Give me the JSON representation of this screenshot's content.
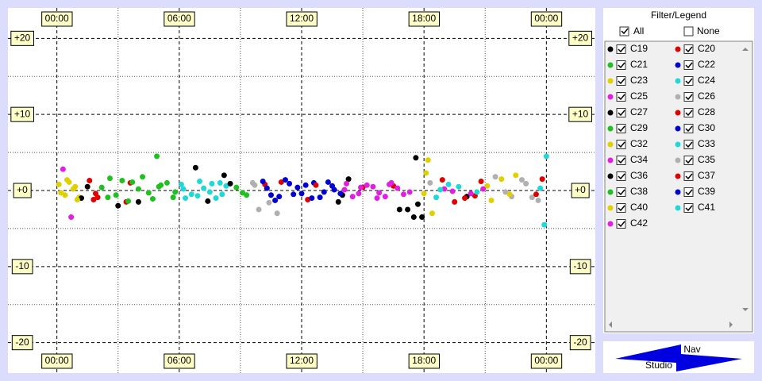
{
  "chart_data": {
    "type": "scatter",
    "xlim": [
      -2.4,
      26.4
    ],
    "xticks": [
      {
        "value": 0,
        "label": "00:00"
      },
      {
        "value": 6,
        "label": "06:00"
      },
      {
        "value": 12,
        "label": "12:00"
      },
      {
        "value": 18,
        "label": "18:00"
      },
      {
        "value": 24,
        "label": "00:00"
      }
    ],
    "xminor": [
      3,
      9,
      15,
      21
    ],
    "ylim": [
      -24,
      24
    ],
    "yticks": [
      {
        "value": 20,
        "label": "+20"
      },
      {
        "value": 10,
        "label": "+10"
      },
      {
        "value": 0,
        "label": "+0"
      },
      -10,
      -20
    ],
    "yminor": [
      15,
      5,
      -5,
      -15
    ],
    "grid": true,
    "series": [
      {
        "name": "C19",
        "color": "#000000",
        "x": [
          1.5,
          4.0,
          8.2,
          14.3,
          16.8,
          17.6,
          17.9
        ],
        "values": [
          0.5,
          -1.5,
          2.0,
          1.5,
          -2.5,
          4.3,
          -3.5
        ]
      },
      {
        "name": "C20",
        "color": "#e00000",
        "x": [
          1.8,
          3.6,
          10.2,
          16.5,
          19.5,
          20.8,
          23.8
        ],
        "values": [
          -1.2,
          1.0,
          0.8,
          0.6,
          -1.5,
          1.2,
          1.5
        ]
      },
      {
        "name": "C21",
        "color": "#20c020",
        "x": [
          2.2,
          2.9,
          3.7,
          4.5,
          5.1,
          5.8,
          4.9
        ],
        "values": [
          0.4,
          -0.6,
          1.1,
          -0.3,
          0.7,
          -0.2,
          4.5
        ]
      },
      {
        "name": "C22",
        "color": "#0000d0",
        "x": [
          10.3,
          10.9,
          11.4,
          12.0,
          12.6,
          13.1,
          13.5
        ],
        "values": [
          0.3,
          -0.8,
          0.9,
          -0.4,
          1.0,
          -0.2,
          0.6
        ]
      },
      {
        "name": "C23",
        "color": "#e0d000",
        "x": [
          0.1,
          0.4,
          0.8,
          1.1,
          18.2,
          18.4,
          22.5
        ],
        "values": [
          0.8,
          -0.6,
          0.2,
          -0.9,
          4.0,
          -3.0,
          2.0
        ]
      },
      {
        "name": "C24",
        "color": "#20d8d8",
        "x": [
          6.1,
          6.6,
          7.2,
          7.8,
          8.3,
          19.2,
          24.0
        ],
        "values": [
          0.8,
          -0.5,
          0.3,
          -1.0,
          0.6,
          0.8,
          4.5
        ]
      },
      {
        "name": "C25",
        "color": "#e020e0",
        "x": [
          0.7,
          14.2,
          14.8,
          15.5,
          16.1,
          16.7,
          17.3
        ],
        "values": [
          -3.5,
          0.9,
          -0.4,
          0.5,
          -0.8,
          0.3,
          -0.2
        ]
      },
      {
        "name": "C26",
        "color": "#b0b0b0",
        "x": [
          9.6,
          9.9,
          10.8,
          21.5,
          22.3,
          23.0,
          23.6
        ],
        "values": [
          1.0,
          -2.5,
          -3.0,
          1.8,
          -0.8,
          0.9,
          -1.3
        ]
      },
      {
        "name": "C27",
        "color": "#000000",
        "x": [
          3.0,
          6.8,
          13.8,
          17.2,
          17.5,
          20.1
        ],
        "values": [
          -2.0,
          3.0,
          -1.5,
          -2.5,
          -3.5,
          -0.8
        ]
      },
      {
        "name": "C28",
        "color": "#e00000",
        "x": [
          1.6,
          2.0,
          11.0,
          12.3,
          15.0,
          20.5
        ],
        "values": [
          1.3,
          -0.9,
          1.1,
          -1.2,
          0.4,
          -0.7
        ]
      },
      {
        "name": "C29",
        "color": "#20c020",
        "x": [
          2.5,
          3.2,
          4.0,
          4.7,
          5.4,
          8.8,
          9.1
        ],
        "values": [
          -0.9,
          1.3,
          0.2,
          -1.1,
          1.0,
          0.4,
          -0.3
        ]
      },
      {
        "name": "C30",
        "color": "#0000d0",
        "x": [
          10.1,
          10.7,
          11.6,
          12.2,
          12.9,
          13.6
        ],
        "values": [
          1.2,
          -1.3,
          -0.5,
          0.7,
          -0.9,
          0.1
        ]
      },
      {
        "name": "C32",
        "color": "#e0d000",
        "x": [
          0.2,
          0.6,
          0.9,
          18.0,
          21.3,
          21.8
        ],
        "values": [
          -0.3,
          1.1,
          0.5,
          -0.4,
          -1.3,
          1.5
        ]
      },
      {
        "name": "C33",
        "color": "#20d8d8",
        "x": [
          6.3,
          7.0,
          7.5,
          8.0,
          18.6,
          19.7,
          23.9
        ],
        "values": [
          -1.0,
          1.2,
          -0.2,
          1.0,
          -0.9,
          0.5,
          -4.5
        ]
      },
      {
        "name": "C34",
        "color": "#e020e0",
        "x": [
          0.3,
          14.5,
          15.2,
          15.8,
          16.4,
          19.0,
          20.3
        ],
        "values": [
          2.8,
          -0.8,
          0.7,
          -0.3,
          1.0,
          0.2,
          -0.4
        ]
      },
      {
        "name": "C35",
        "color": "#b0b0b0",
        "x": [
          9.7,
          10.4,
          18.3,
          22.0,
          22.8,
          23.3
        ],
        "values": [
          0.7,
          -1.6,
          1.0,
          -0.2,
          1.4,
          -0.9
        ]
      },
      {
        "name": "C36",
        "color": "#000000",
        "x": [
          1.2,
          7.4,
          8.5,
          14.0,
          17.7
        ],
        "values": [
          -1.0,
          -1.4,
          0.9,
          -0.6,
          -1.8
        ]
      },
      {
        "name": "C37",
        "color": "#e00000",
        "x": [
          1.9,
          3.4,
          12.7,
          18.9,
          20.0,
          23.5
        ],
        "values": [
          -0.4,
          -1.5,
          0.7,
          1.4,
          -1.0,
          -0.5
        ]
      },
      {
        "name": "C38",
        "color": "#20c020",
        "x": [
          2.6,
          3.5,
          4.2,
          5.0,
          5.7,
          9.3
        ],
        "values": [
          1.6,
          -1.4,
          1.8,
          0.5,
          -0.9,
          -0.6
        ]
      },
      {
        "name": "C39",
        "color": "#0000d0",
        "x": [
          10.5,
          11.2,
          11.8,
          12.5,
          13.3,
          13.9
        ],
        "values": [
          -0.6,
          1.4,
          0.4,
          -1.0,
          1.1,
          -0.4
        ]
      },
      {
        "name": "C40",
        "color": "#e0d000",
        "x": [
          0.5,
          1.0,
          18.1,
          21.1,
          22.2
        ],
        "values": [
          1.4,
          -1.2,
          2.3,
          0.6,
          -0.5
        ]
      },
      {
        "name": "C41",
        "color": "#20d8d8",
        "x": [
          6.2,
          6.9,
          7.6,
          8.1,
          18.8,
          20.6,
          23.7
        ],
        "values": [
          0.2,
          -0.7,
          0.9,
          -0.5,
          0.1,
          -0.2,
          0.3
        ]
      },
      {
        "name": "C42",
        "color": "#e020e0",
        "x": [
          14.1,
          14.9,
          15.7,
          16.3,
          17.0,
          19.4,
          20.9
        ],
        "values": [
          0.1,
          0.4,
          -1.0,
          0.8,
          -0.5,
          -0.1,
          0.2
        ]
      }
    ]
  },
  "legend_panel": {
    "title": "Filter/Legend",
    "all": "All",
    "none": "None"
  },
  "nav_button": {
    "top": "Nav",
    "bottom": "Studio"
  }
}
